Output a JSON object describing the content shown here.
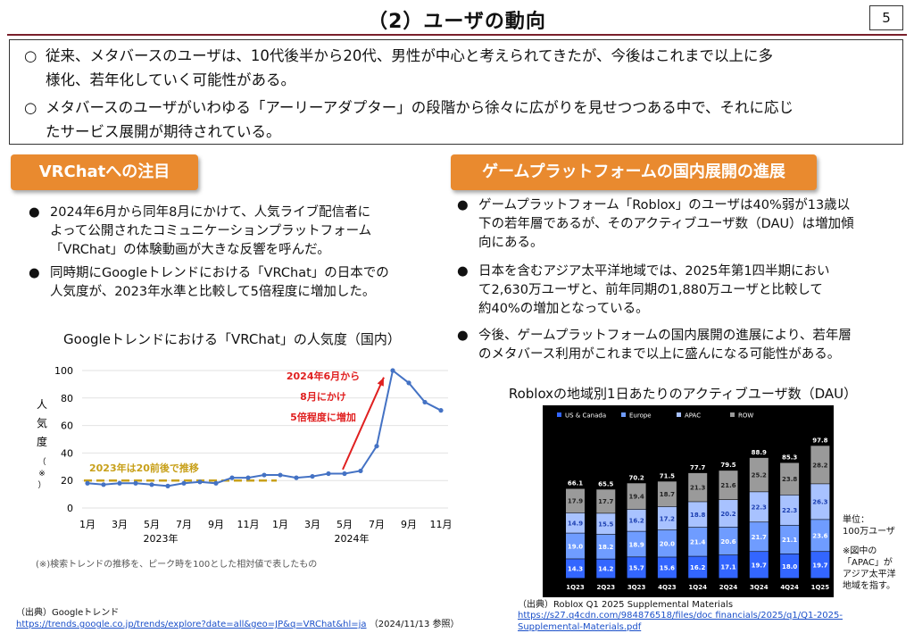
{
  "header": {
    "title": "（2）ユーザの動向",
    "page_number": "5"
  },
  "summary": [
    {
      "mark": "○",
      "text": "従来、メタバースのユーザは、10代後半から20代、男性が中心と考えられてきたが、今後はこれまで以上に多",
      "cont": "様化、若年化していく可能性がある。"
    },
    {
      "mark": "○",
      "text": "メタバースのユーザがいわゆる「アーリーアダプター」の段階から徐々に広がりを見せつつある中で、それに応じ",
      "cont": "たサービス展開が期待されている。"
    }
  ],
  "left": {
    "heading": "VRChatへの注目",
    "bullets": [
      {
        "lines": [
          "2024年6月から同年8月にかけて、人気ライブ配信者に",
          "よって公開されたコミュニケーションプラットフォーム",
          "「VRChat」の体験動画が大きな反響を呼んだ。"
        ]
      },
      {
        "lines": [
          "同時期にGoogleトレンドにおける「VRChat」の日本での",
          "人気度が、2023年水準と比較して5倍程度に増加した。"
        ]
      }
    ],
    "chart_title": "Googleトレンドにおける「VRChat」の人気度（国内）",
    "chart_note": "(※)検索トレンドの推移を、ピーク時を100とした相対値で表したもの",
    "source_label": "（出典）Googleトレンド",
    "source_url": "https://trends.google.co.jp/trends/explore?date=all&geo=JP&q=VRChat&hl=ja",
    "source_date": "（2024/11/13 参照）"
  },
  "right": {
    "heading": "ゲームプラットフォームの国内展開の進展",
    "bullets": [
      {
        "lines": [
          "ゲームプラットフォーム「Roblox」のユーザは40%弱が13歳以",
          "下の若年層であるが、そのアクティブユーザ数（DAU）は増加傾",
          "向にある。"
        ]
      },
      {
        "lines": [
          "日本を含むアジア太平洋地域では、2025年第1四半期におい",
          "て2,630万ユーザと、前年同期の1,880万ユーザと比較して",
          "約40%の増加となっている。"
        ]
      },
      {
        "lines": [
          "今後、ゲームプラットフォームの国内展開の進展により、若年層",
          "のメタバース利用がこれまで以上に盛んになる可能性がある。"
        ]
      }
    ],
    "chart_title": "Robloxの地域別1日あたりのアクティブユーザ数（DAU）",
    "unit_label": [
      "単位：",
      "100万ユーザ"
    ],
    "note": [
      "※図中の",
      "「APAC」が",
      "アジア太平洋",
      "地域を指す。"
    ],
    "source_label": "（出典）Roblox Q1 2025 Supplemental Materials",
    "source_url": "https://s27.q4cdn.com/984876518/files/doc_financials/2025/q1/Q1-2025-Supplemental-Materials.pdf",
    "source_url_lines": [
      "https://s27.q4cdn.com/984876518/files/doc financials/2025/q1/Q1-2025-",
      "Supplemental-Materials.pdf"
    ]
  },
  "colors": {
    "orange": "#e98a2f",
    "line_blue": "#4472c4",
    "red": "#e02020",
    "gold": "#c8a01a",
    "us": "#3366ff",
    "europe": "#6f9cff",
    "apac": "#a8c2ff",
    "row": "#9a9a9a"
  },
  "chart_data": [
    {
      "type": "line",
      "title": "Googleトレンドにおける「VRChat」の人気度（国内）",
      "ylabel": "人気度（※）",
      "ylim": [
        0,
        100
      ],
      "yticks": [
        0,
        20,
        40,
        60,
        80,
        100
      ],
      "x_tick_labels": [
        "1月",
        "3月",
        "5月",
        "7月",
        "9月",
        "11月",
        "1月",
        "3月",
        "5月",
        "7月",
        "9月",
        "11月"
      ],
      "x_year_labels": [
        "2023年",
        "2024年"
      ],
      "x": [
        "2023-01",
        "2023-02",
        "2023-03",
        "2023-04",
        "2023-05",
        "2023-06",
        "2023-07",
        "2023-08",
        "2023-09",
        "2023-10",
        "2023-11",
        "2023-12",
        "2024-01",
        "2024-02",
        "2024-03",
        "2024-04",
        "2024-05",
        "2024-06",
        "2024-07",
        "2024-08",
        "2024-09",
        "2024-10",
        "2024-11"
      ],
      "values": [
        18,
        17,
        18,
        18,
        17,
        16,
        18,
        19,
        18,
        22,
        22,
        24,
        24,
        22,
        23,
        25,
        25,
        27,
        45,
        100,
        91,
        77,
        71
      ],
      "annotations": {
        "baseline_label": "2023年は20前後で推移",
        "baseline_value": 20,
        "increase_label": [
          "2024年6月から",
          "8月にかけ",
          "5倍程度に増加"
        ]
      }
    },
    {
      "type": "bar",
      "stacked": true,
      "categories": [
        "1Q23",
        "2Q23",
        "3Q23",
        "4Q23",
        "1Q24",
        "2Q24",
        "3Q24",
        "4Q24",
        "1Q25"
      ],
      "series": [
        {
          "name": "US & Canada",
          "values": [
            14.3,
            14.2,
            15.7,
            15.6,
            16.2,
            17.1,
            19.7,
            18.0,
            19.7
          ]
        },
        {
          "name": "Europe",
          "values": [
            19.0,
            18.2,
            18.9,
            20.0,
            21.4,
            20.6,
            21.7,
            21.1,
            23.6
          ]
        },
        {
          "name": "APAC",
          "values": [
            14.9,
            15.5,
            16.2,
            17.2,
            18.8,
            20.2,
            22.3,
            22.3,
            26.3
          ]
        },
        {
          "name": "ROW",
          "values": [
            17.9,
            17.7,
            19.4,
            18.7,
            21.3,
            21.6,
            25.2,
            23.8,
            28.2
          ]
        }
      ],
      "totals": [
        66.1,
        65.5,
        70.2,
        71.5,
        77.7,
        79.5,
        88.9,
        85.3,
        97.8
      ],
      "legend_position": "top-left"
    }
  ]
}
